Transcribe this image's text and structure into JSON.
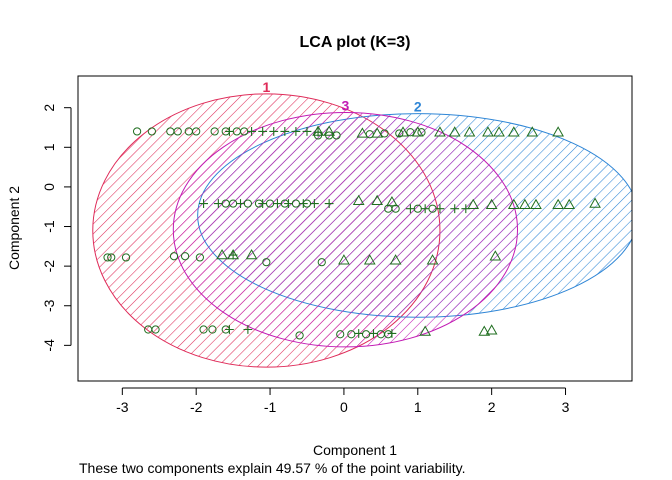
{
  "chart_data": {
    "type": "scatter",
    "title": "LCA plot (K=3)",
    "xlabel": "Component 1",
    "ylabel": "Component 2",
    "caption": "These two components explain 49.57 % of the point variability.",
    "xlim": [
      -3.6,
      3.9
    ],
    "ylim": [
      -4.9,
      2.8
    ],
    "xticks": [
      -3,
      -2,
      -1,
      0,
      1,
      2,
      3
    ],
    "yticks": [
      -4,
      -3,
      -2,
      -1,
      0,
      1,
      2
    ],
    "grid": false,
    "colors": {
      "cluster1": "#df2b59",
      "cluster2": "#2f86d6",
      "cluster3": "#c21bb4",
      "points": "#1f6e1f"
    },
    "clusters": [
      {
        "label": "1",
        "color": "#df2b59",
        "center": [
          -1.05,
          -1.1
        ],
        "semi_axes": [
          2.35,
          3.45
        ]
      },
      {
        "label": "2",
        "color": "#2f86d6",
        "center": [
          1.0,
          -0.72
        ],
        "semi_axes": [
          2.98,
          2.57
        ]
      },
      {
        "label": "3",
        "color": "#c21bb4",
        "center": [
          0.02,
          -1.08
        ],
        "semi_axes": [
          2.33,
          2.96
        ]
      }
    ],
    "series": [
      {
        "marker": "circle",
        "points": [
          [
            -2.8,
            1.4
          ],
          [
            -2.6,
            1.4
          ],
          [
            -2.35,
            1.4
          ],
          [
            -2.25,
            1.4
          ],
          [
            -2.1,
            1.4
          ],
          [
            -2.0,
            1.4
          ],
          [
            -1.75,
            1.4
          ],
          [
            -1.6,
            1.4
          ],
          [
            -1.45,
            1.4
          ],
          [
            -1.35,
            1.4
          ],
          [
            -0.35,
            1.3
          ],
          [
            -0.2,
            1.3
          ],
          [
            -0.1,
            1.3
          ],
          [
            0.35,
            1.33
          ],
          [
            0.55,
            1.35
          ],
          [
            0.75,
            1.35
          ],
          [
            0.9,
            1.38
          ],
          [
            1.05,
            1.38
          ],
          [
            -1.6,
            -0.42
          ],
          [
            -1.5,
            -0.42
          ],
          [
            -1.3,
            -0.42
          ],
          [
            -1.15,
            -0.42
          ],
          [
            -1.0,
            -0.42
          ],
          [
            -0.8,
            -0.42
          ],
          [
            -0.65,
            -0.42
          ],
          [
            -0.5,
            -0.42
          ],
          [
            0.6,
            -0.55
          ],
          [
            0.7,
            -0.55
          ],
          [
            1.0,
            -0.55
          ],
          [
            1.2,
            -0.55
          ],
          [
            -3.2,
            -1.78
          ],
          [
            -3.15,
            -1.78
          ],
          [
            -2.95,
            -1.78
          ],
          [
            -2.3,
            -1.75
          ],
          [
            -2.15,
            -1.75
          ],
          [
            -1.95,
            -1.78
          ],
          [
            -1.05,
            -1.9
          ],
          [
            -0.3,
            -1.9
          ],
          [
            -2.65,
            -3.6
          ],
          [
            -2.55,
            -3.6
          ],
          [
            -1.9,
            -3.6
          ],
          [
            -1.78,
            -3.6
          ],
          [
            -1.6,
            -3.6
          ],
          [
            -0.6,
            -3.75
          ],
          [
            -0.05,
            -3.72
          ],
          [
            0.1,
            -3.72
          ],
          [
            0.3,
            -3.72
          ],
          [
            0.5,
            -3.72
          ],
          [
            0.6,
            -3.72
          ]
        ]
      },
      {
        "marker": "plus",
        "points": [
          [
            -1.55,
            1.4
          ],
          [
            -1.25,
            1.4
          ],
          [
            -1.1,
            1.4
          ],
          [
            -0.95,
            1.4
          ],
          [
            -0.8,
            1.4
          ],
          [
            -0.65,
            1.4
          ],
          [
            -0.5,
            1.4
          ],
          [
            -0.35,
            1.38
          ],
          [
            -1.9,
            -0.42
          ],
          [
            -1.7,
            -0.42
          ],
          [
            -1.4,
            -0.42
          ],
          [
            -1.1,
            -0.42
          ],
          [
            -0.9,
            -0.42
          ],
          [
            -0.75,
            -0.42
          ],
          [
            -0.55,
            -0.42
          ],
          [
            -0.4,
            -0.42
          ],
          [
            -0.2,
            -0.42
          ],
          [
            0.9,
            -0.55
          ],
          [
            1.1,
            -0.55
          ],
          [
            1.3,
            -0.55
          ],
          [
            1.5,
            -0.55
          ],
          [
            1.65,
            -0.55
          ],
          [
            -1.5,
            -1.72
          ],
          [
            -1.55,
            -3.6
          ],
          [
            -1.3,
            -3.6
          ],
          [
            0.2,
            -3.7
          ],
          [
            0.4,
            -3.7
          ],
          [
            0.65,
            -3.7
          ]
        ]
      },
      {
        "marker": "triangle",
        "points": [
          [
            -0.35,
            1.4
          ],
          [
            -0.2,
            1.4
          ],
          [
            0.25,
            1.35
          ],
          [
            0.45,
            1.35
          ],
          [
            0.8,
            1.38
          ],
          [
            1.0,
            1.38
          ],
          [
            1.3,
            1.38
          ],
          [
            1.5,
            1.38
          ],
          [
            1.7,
            1.38
          ],
          [
            1.95,
            1.38
          ],
          [
            2.1,
            1.38
          ],
          [
            2.3,
            1.38
          ],
          [
            2.55,
            1.38
          ],
          [
            2.9,
            1.38
          ],
          [
            0.2,
            -0.35
          ],
          [
            0.45,
            -0.35
          ],
          [
            0.65,
            -0.38
          ],
          [
            1.75,
            -0.45
          ],
          [
            2.0,
            -0.45
          ],
          [
            2.3,
            -0.45
          ],
          [
            2.45,
            -0.45
          ],
          [
            2.6,
            -0.45
          ],
          [
            2.9,
            -0.45
          ],
          [
            3.05,
            -0.45
          ],
          [
            3.4,
            -0.42
          ],
          [
            -1.65,
            -1.72
          ],
          [
            -1.5,
            -1.72
          ],
          [
            -1.25,
            -1.72
          ],
          [
            0.0,
            -1.85
          ],
          [
            0.35,
            -1.85
          ],
          [
            0.7,
            -1.85
          ],
          [
            1.2,
            -1.85
          ],
          [
            2.05,
            -1.75
          ],
          [
            1.1,
            -3.65
          ],
          [
            1.9,
            -3.65
          ],
          [
            2.0,
            -3.62
          ]
        ]
      }
    ]
  }
}
